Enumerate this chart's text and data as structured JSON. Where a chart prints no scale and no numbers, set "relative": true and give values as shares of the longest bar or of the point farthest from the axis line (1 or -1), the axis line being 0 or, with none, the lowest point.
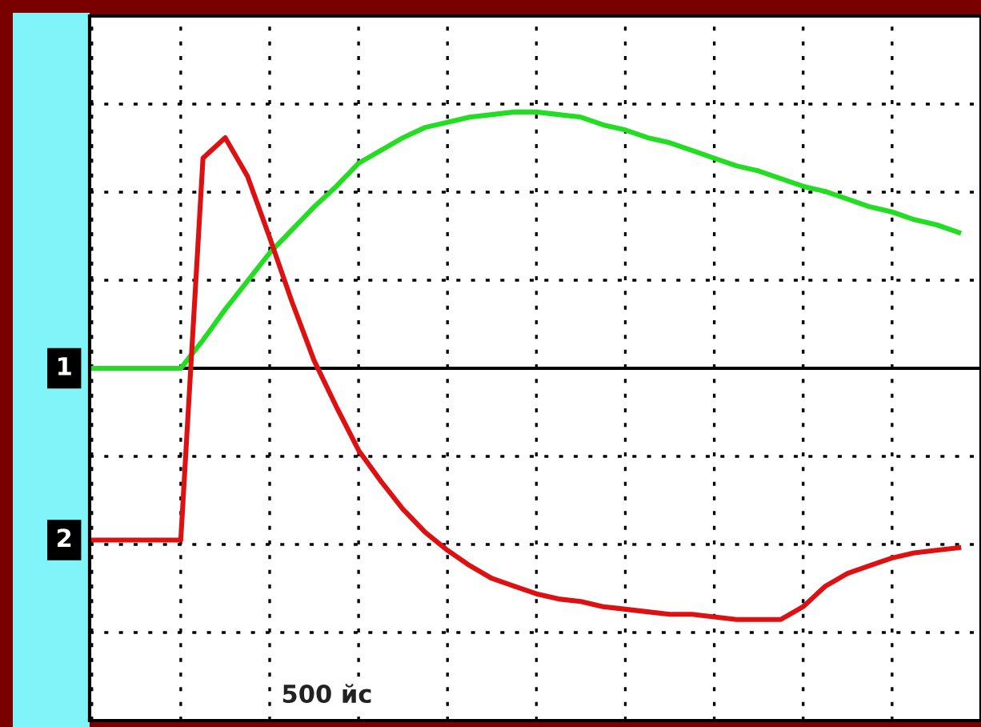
{
  "chart_data": {
    "type": "line",
    "relative": true,
    "grid": true,
    "legend": false,
    "marker": "none",
    "line_style": "solid",
    "categories": [
      null,
      null,
      null,
      null,
      null,
      null,
      null,
      null,
      null,
      null,
      null,
      null,
      null,
      null,
      null,
      null,
      null,
      null,
      null,
      null,
      null,
      null,
      null,
      null,
      null,
      null,
      null,
      null,
      null,
      null,
      null,
      null,
      null,
      null,
      null,
      null,
      null,
      null,
      null,
      null
    ],
    "series": [
      {
        "color": "#22dd22",
        "values": [
          0,
          0,
          0,
          0,
          0,
          0.11,
          0.23,
          0.34,
          0.45,
          0.54,
          0.63,
          0.71,
          0.8,
          0.85,
          0.9,
          0.94,
          0.96,
          0.98,
          0.99,
          1.0,
          1.0,
          0.99,
          0.98,
          0.95,
          0.93,
          0.9,
          0.88,
          0.85,
          0.82,
          0.79,
          0.77,
          0.74,
          0.71,
          0.69,
          0.66,
          0.63,
          0.61,
          0.58,
          0.56,
          0.53
        ]
      },
      {
        "color": "#dd1111",
        "values": [
          -0.67,
          -0.67,
          -0.67,
          -0.67,
          -0.67,
          0.82,
          0.9,
          0.75,
          0.51,
          0.26,
          0.03,
          -0.15,
          -0.32,
          -0.44,
          -0.55,
          -0.64,
          -0.71,
          -0.77,
          -0.82,
          -0.85,
          -0.88,
          -0.9,
          -0.91,
          -0.93,
          -0.94,
          -0.95,
          -0.96,
          -0.96,
          -0.97,
          -0.98,
          -0.98,
          -0.98,
          -0.93,
          -0.85,
          -0.8,
          -0.77,
          -0.74,
          -0.72,
          -0.71,
          -0.7
        ]
      }
    ],
    "annotations": [
      "1",
      "2",
      "500 йс"
    ]
  }
}
